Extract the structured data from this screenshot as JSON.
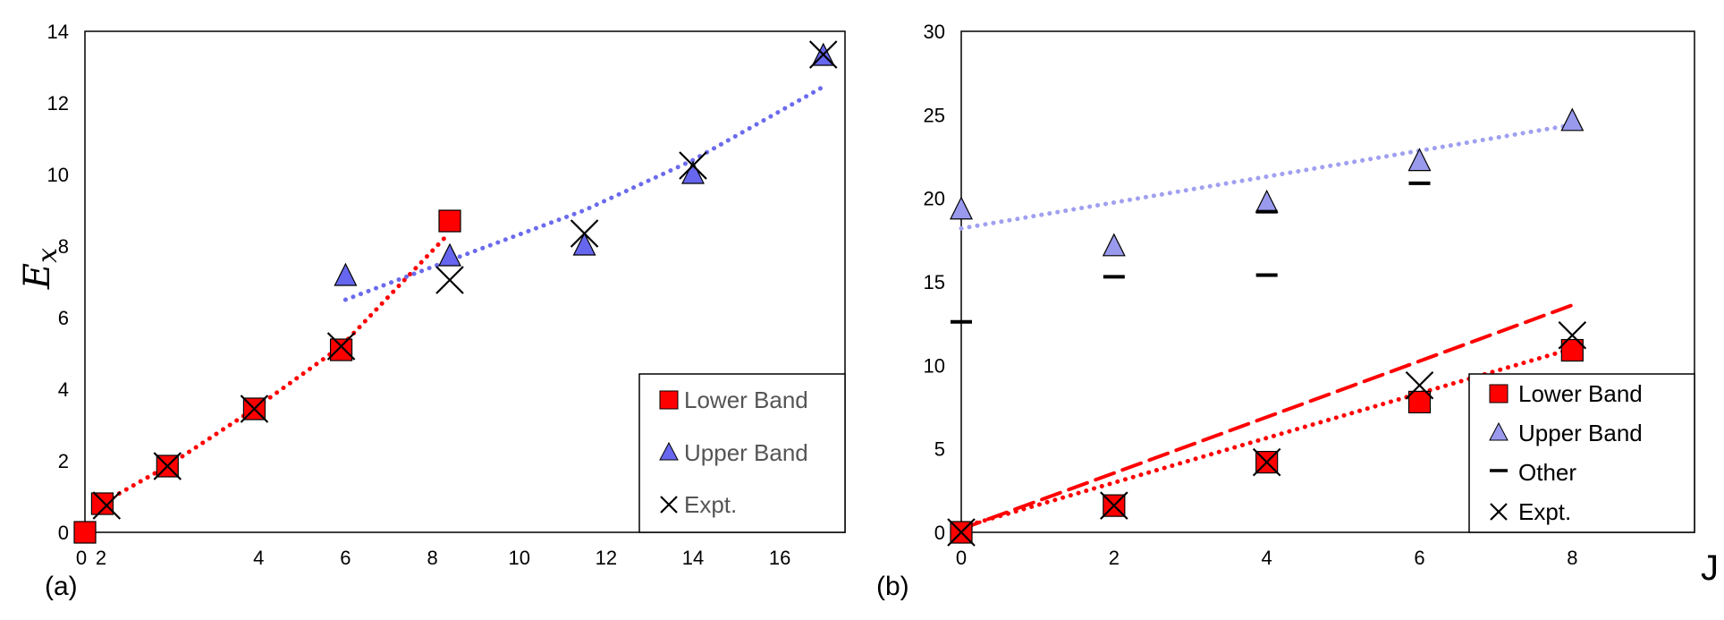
{
  "colors": {
    "lower": "#ff0000",
    "upper_a": "#6666ee",
    "upper_b": "#9999ee",
    "upper_fit_a": "#6b6bee",
    "upper_fit_b": "#a0a0f0",
    "other": "#000000",
    "expt": "#000000"
  },
  "panel_labels": {
    "a": "(a)",
    "b": "(b)"
  },
  "axis_labels": {
    "a_y_base": "E",
    "a_y_sub": "x",
    "b_x": "J"
  },
  "legend_a": {
    "lower": "Lower Band",
    "upper": "Upper Band",
    "expt": "Expt."
  },
  "legend_b": {
    "lower": "Lower Band",
    "upper": "Upper Band",
    "other": "Other",
    "expt": "Expt."
  },
  "chart_data": [
    {
      "type": "scatter",
      "panel": "a",
      "ylabel": "E_x",
      "xlim": [
        0,
        17.5
      ],
      "ylim": [
        0,
        14
      ],
      "x_ticks": [
        0,
        2,
        4,
        6,
        8,
        10,
        12,
        14,
        16
      ],
      "y_ticks": [
        0,
        2,
        4,
        6,
        8,
        10,
        12,
        14
      ],
      "grid": false,
      "legend_position": "bottom-right",
      "series": [
        {
          "name": "Lower Band",
          "marker": "square",
          "points": [
            [
              0,
              0
            ],
            [
              0.4,
              0.8
            ],
            [
              1.9,
              1.85
            ],
            [
              3.9,
              3.45
            ],
            [
              5.9,
              5.1
            ],
            [
              8.4,
              8.7
            ]
          ]
        },
        {
          "name": "Upper Band",
          "marker": "triangle",
          "points": [
            [
              6.0,
              7.15
            ],
            [
              8.4,
              7.7
            ],
            [
              11.5,
              8.0
            ],
            [
              14.0,
              10.0
            ],
            [
              17.0,
              13.3
            ]
          ]
        },
        {
          "name": "Expt.",
          "marker": "x",
          "points": [
            [
              0.5,
              0.75
            ],
            [
              1.9,
              1.85
            ],
            [
              3.9,
              3.45
            ],
            [
              5.9,
              5.2
            ],
            [
              8.4,
              7.05
            ],
            [
              11.5,
              8.35
            ],
            [
              14.0,
              10.25
            ],
            [
              17.0,
              13.35
            ]
          ]
        }
      ],
      "fits": [
        {
          "series": "Lower Band",
          "style": "dotted",
          "points": [
            [
              0.3,
              0.75
            ],
            [
              1.9,
              1.85
            ],
            [
              3.9,
              3.45
            ],
            [
              5.9,
              5.2
            ],
            [
              8.3,
              8.25
            ]
          ]
        },
        {
          "series": "Upper Band",
          "style": "dotted",
          "points": [
            [
              6.0,
              6.5
            ],
            [
              8.4,
              7.6
            ],
            [
              11.5,
              9.0
            ],
            [
              14.0,
              10.4
            ],
            [
              17.0,
              12.45
            ]
          ]
        }
      ]
    },
    {
      "type": "scatter",
      "panel": "b",
      "xlabel": "J",
      "xlim": [
        0,
        9.6
      ],
      "ylim": [
        0,
        30
      ],
      "x_ticks": [
        0,
        2,
        4,
        6,
        8
      ],
      "y_ticks": [
        0,
        5,
        10,
        15,
        20,
        25,
        30
      ],
      "grid": false,
      "legend_position": "bottom-right",
      "series": [
        {
          "name": "Lower Band",
          "marker": "square",
          "points": [
            [
              0,
              0
            ],
            [
              2,
              1.6
            ],
            [
              4,
              4.2
            ],
            [
              6,
              7.8
            ],
            [
              8,
              10.9
            ]
          ]
        },
        {
          "name": "Upper Band",
          "marker": "triangle",
          "points": [
            [
              0,
              19.3
            ],
            [
              2,
              17.1
            ],
            [
              4,
              19.7
            ],
            [
              6,
              22.2
            ],
            [
              8,
              24.6
            ]
          ]
        },
        {
          "name": "Other",
          "marker": "dash",
          "points": [
            [
              0,
              12.6
            ],
            [
              2,
              15.3
            ],
            [
              4,
              15.4
            ],
            [
              4,
              19.2
            ],
            [
              6,
              20.9
            ]
          ]
        },
        {
          "name": "Expt.",
          "marker": "x",
          "points": [
            [
              0,
              0
            ],
            [
              2,
              1.6
            ],
            [
              4,
              4.2
            ],
            [
              6,
              8.8
            ],
            [
              8,
              11.8
            ]
          ]
        }
      ],
      "fits": [
        {
          "series": "Lower Band",
          "style": "dotted",
          "points": [
            [
              0,
              0.3
            ],
            [
              8,
              11.0
            ]
          ]
        },
        {
          "series": "Lower Band",
          "style": "dashed",
          "points": [
            [
              0,
              0.2
            ],
            [
              8,
              13.6
            ]
          ]
        },
        {
          "series": "Upper Band",
          "style": "dotted",
          "points": [
            [
              0,
              18.2
            ],
            [
              8,
              24.4
            ]
          ]
        }
      ]
    }
  ]
}
